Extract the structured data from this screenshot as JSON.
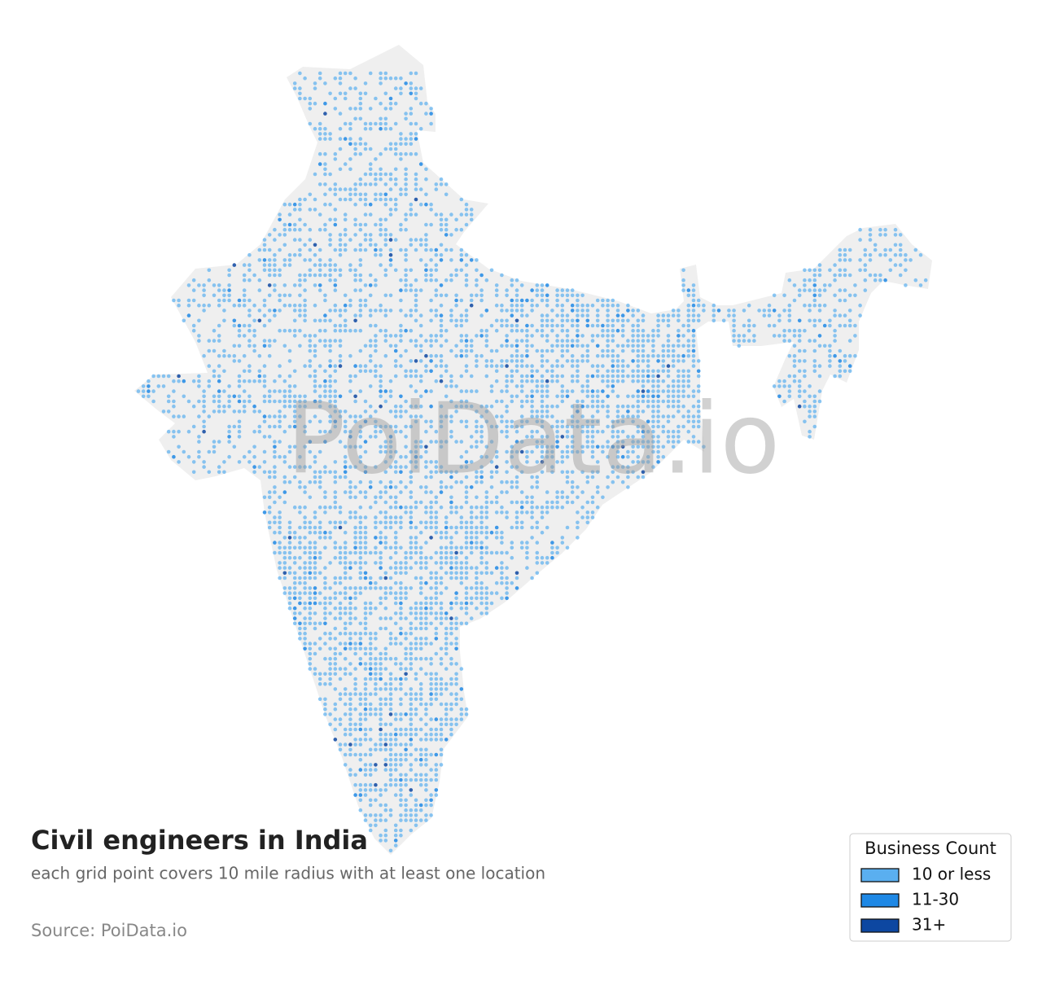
{
  "title": "Civil engineers in India",
  "subtitle": "each grid point covers 10 mile radius with at least one location",
  "source": "Source: PoiData.io",
  "watermark": "PoiData.io",
  "legend": {
    "title": "Business Count",
    "items": [
      {
        "label": "10 or less",
        "color": "#5aaff0"
      },
      {
        "label": "11-30",
        "color": "#1e88e5"
      },
      {
        "label": "31+",
        "color": "#0d47a1"
      }
    ]
  }
}
